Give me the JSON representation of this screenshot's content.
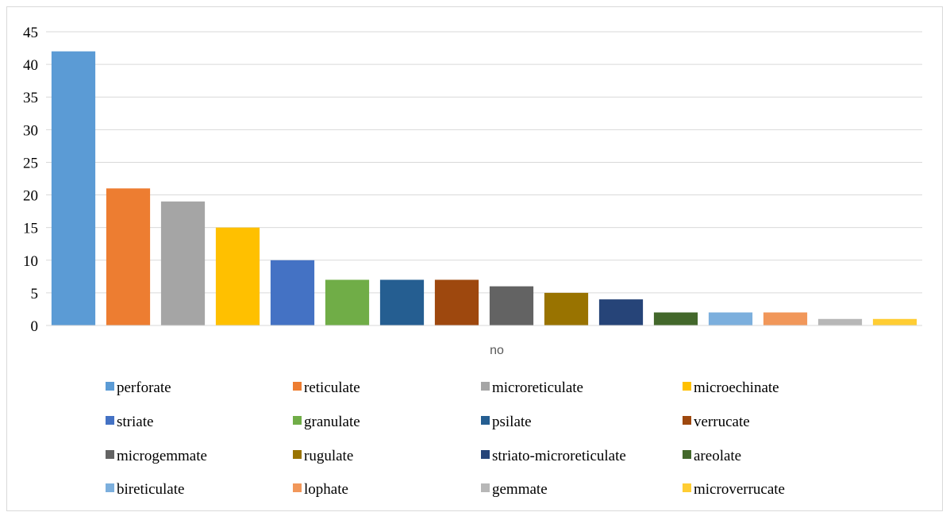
{
  "chart_data": {
    "type": "bar",
    "xlabel": "no",
    "ylabel": "",
    "ylim": [
      0,
      45
    ],
    "yticks": [
      0,
      5,
      10,
      15,
      20,
      25,
      30,
      35,
      40,
      45
    ],
    "grid": true,
    "legend_position": "bottom",
    "series": [
      {
        "name": "perforate",
        "value": 42,
        "color": "#5B9BD5"
      },
      {
        "name": "reticulate",
        "value": 21,
        "color": "#ED7D31"
      },
      {
        "name": "microreticulate",
        "value": 19,
        "color": "#A5A5A5"
      },
      {
        "name": "microechinate",
        "value": 15,
        "color": "#FFC000"
      },
      {
        "name": "striate",
        "value": 10,
        "color": "#4472C4"
      },
      {
        "name": "granulate",
        "value": 7,
        "color": "#70AD47"
      },
      {
        "name": "psilate",
        "value": 7,
        "color": "#255E91"
      },
      {
        "name": "verrucate",
        "value": 7,
        "color": "#9E480E"
      },
      {
        "name": "microgemmate",
        "value": 6,
        "color": "#636363"
      },
      {
        "name": "rugulate",
        "value": 5,
        "color": "#997300"
      },
      {
        "name": "striato-microreticulate",
        "value": 4,
        "color": "#264478"
      },
      {
        "name": "areolate",
        "value": 2,
        "color": "#43682B"
      },
      {
        "name": "bireticulate",
        "value": 2,
        "color": "#7CAFDD"
      },
      {
        "name": "lophate",
        "value": 2,
        "color": "#F1975A"
      },
      {
        "name": "gemmate",
        "value": 1,
        "color": "#B7B7B7"
      },
      {
        "name": "microverrucate",
        "value": 1,
        "color": "#FFCD33"
      }
    ]
  }
}
